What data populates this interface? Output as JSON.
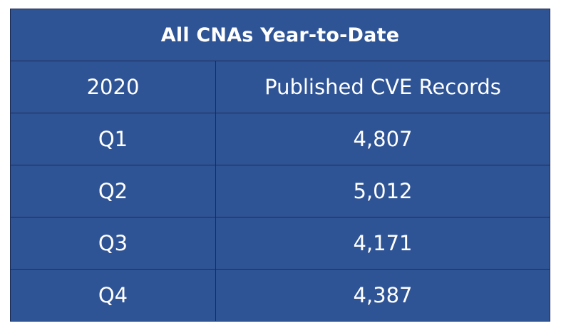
{
  "chart_data": {
    "type": "table",
    "title": "All CNAs Year-to-Date",
    "columns": [
      "2020",
      "Published CVE Records"
    ],
    "rows": [
      {
        "quarter": "Q1",
        "value": "4,807"
      },
      {
        "quarter": "Q2",
        "value": "5,012"
      },
      {
        "quarter": "Q3",
        "value": "4,171"
      },
      {
        "quarter": "Q4",
        "value": "4,387"
      }
    ],
    "colors": {
      "cell_background": "#2f5496",
      "border": "#1c2a52",
      "text": "#ffffff"
    }
  }
}
